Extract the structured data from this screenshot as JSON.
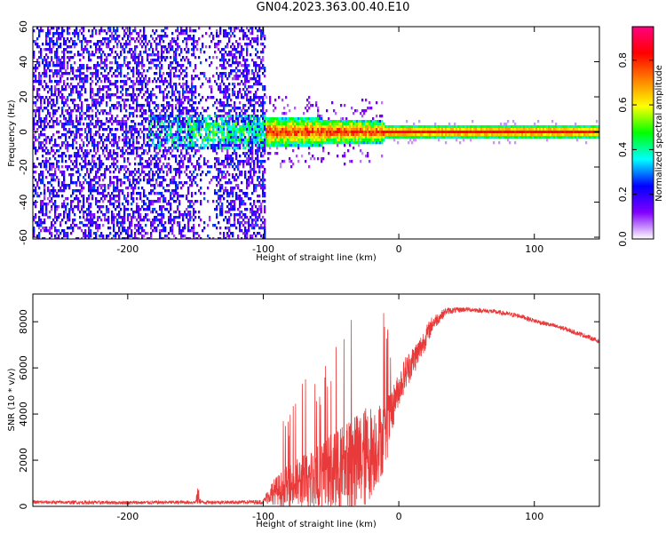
{
  "title": "GN04.2023.363.00.40.E10",
  "chart_data": [
    {
      "type": "heatmap",
      "xlabel": "Height of straight line (km)",
      "ylabel": "Frequency (Hz)",
      "xlim": [
        -270,
        148
      ],
      "ylim": [
        -61,
        60
      ],
      "xticks": [
        -200,
        -100,
        0,
        100
      ],
      "yticks": [
        -60,
        -40,
        -20,
        0,
        20,
        40,
        60
      ],
      "colorbar": {
        "label": "Normalized spectral amplitude",
        "range": [
          0,
          0.95
        ],
        "ticks": [
          0.0,
          0.2,
          0.4,
          0.6,
          0.8
        ],
        "colormap": [
          "#ffffff",
          "#8000ff",
          "#0000ff",
          "#00ffff",
          "#00ff00",
          "#ffff00",
          "#ff8000",
          "#ff0000",
          "#ff0080"
        ]
      },
      "features": [
        {
          "x_range": [
            -270,
            -98
          ],
          "freq_range": [
            -60,
            60
          ],
          "amplitude": "low, sparse (0.1-0.25)"
        },
        {
          "x_range": [
            -180,
            -98
          ],
          "freq_range": [
            -10,
            10
          ],
          "amplitude": "0.2-0.5"
        },
        {
          "x_range": [
            -98,
            -10
          ],
          "freq_range": [
            -8,
            8
          ],
          "amplitude": "0.3-0.8 band centered near 0 Hz"
        },
        {
          "x_range": [
            -10,
            148
          ],
          "freq_range": [
            -3,
            3
          ],
          "amplitude": "narrow band 0.5-0.9 at 0 Hz"
        }
      ]
    },
    {
      "type": "line",
      "xlabel": "Height of straight line (km)",
      "ylabel": "SNR (10 * v/v)",
      "xlim": [
        -270,
        148
      ],
      "ylim": [
        0,
        9200
      ],
      "xticks": [
        -200,
        -100,
        0,
        100
      ],
      "yticks": [
        0,
        2000,
        4000,
        6000,
        8000
      ],
      "color": "#e83a3a",
      "envelope": {
        "x": [
          -270,
          -200,
          -150,
          -148,
          -146,
          -120,
          -100,
          -95,
          -80,
          -60,
          -40,
          -25,
          -10,
          -2,
          5,
          15,
          25,
          35,
          50,
          70,
          90,
          100,
          120,
          140,
          148
        ],
        "base": [
          150,
          130,
          150,
          300,
          150,
          150,
          150,
          400,
          500,
          600,
          800,
          1200,
          2500,
          4500,
          5500,
          6500,
          7800,
          8400,
          8500,
          8400,
          8200,
          8000,
          7700,
          7300,
          7100
        ],
        "spread": [
          150,
          150,
          150,
          900,
          150,
          150,
          200,
          900,
          2000,
          3000,
          4000,
          4500,
          3000,
          1500,
          1500,
          1200,
          700,
          300,
          200,
          200,
          200,
          200,
          200,
          200,
          200
        ]
      }
    }
  ]
}
